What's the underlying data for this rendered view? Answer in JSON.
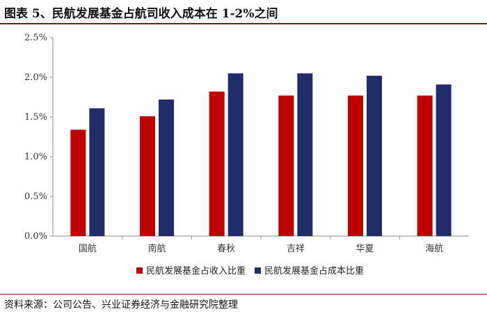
{
  "title": "图表 5、民航发展基金占航司收入成本在 1-2%之间",
  "source": "资料来源：公司公告、兴业证券经济与金融研究院整理",
  "chart_data": {
    "type": "bar",
    "categories": [
      "国航",
      "南航",
      "春秋",
      "吉祥",
      "华夏",
      "海航"
    ],
    "series": [
      {
        "name": "民航发展基金占收入比重",
        "color": "#c00000",
        "values": [
          1.34,
          1.51,
          1.82,
          1.77,
          1.77,
          1.77
        ]
      },
      {
        "name": "民航发展基金占成本比重",
        "color": "#1f2d6b",
        "values": [
          1.61,
          1.72,
          2.05,
          2.05,
          2.02,
          1.91
        ]
      }
    ],
    "yticks": [
      "0.0%",
      "0.5%",
      "1.0%",
      "1.5%",
      "2.0%",
      "2.5%"
    ],
    "ylim": [
      0,
      2.5
    ],
    "ytick_step": 0.5,
    "legend_position": "bottom",
    "grid": false
  }
}
